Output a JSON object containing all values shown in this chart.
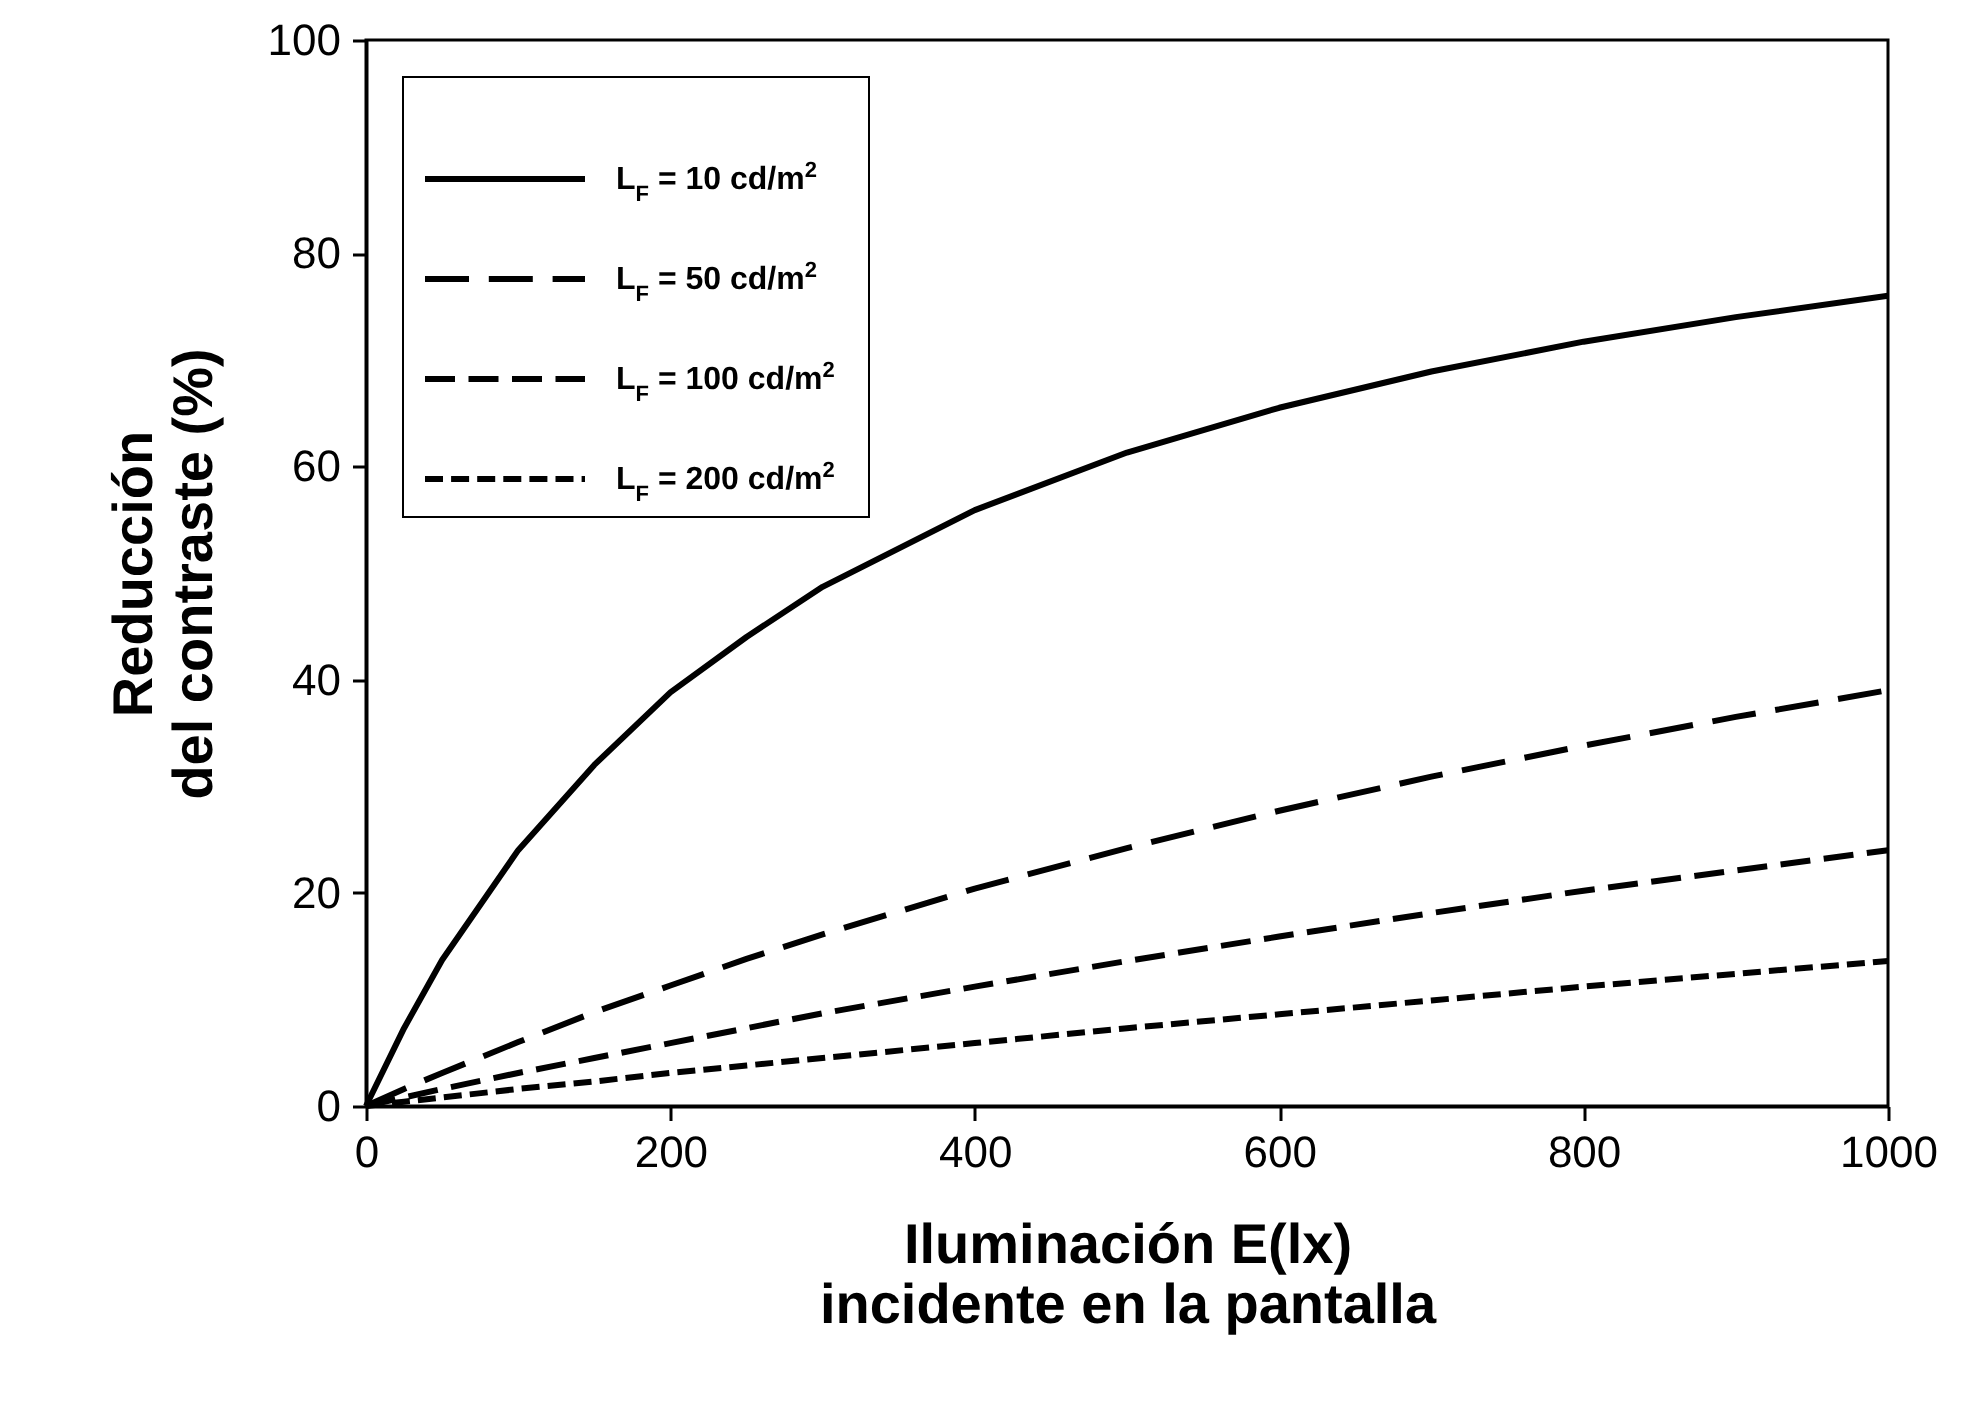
{
  "chart_data": {
    "type": "line",
    "xlabel": "Iluminación E(lx)\nincidente en la pantalla",
    "ylabel": "Reducción\ndel contraste (%)",
    "x": [
      0,
      25,
      50,
      100,
      150,
      200,
      250,
      300,
      400,
      500,
      600,
      700,
      800,
      900,
      1000
    ],
    "series": [
      {
        "name": "L$_{F}$ = 10 cd/m$^{2}$",
        "color": "#000000",
        "line_style": "solid",
        "values": [
          0,
          7.3,
          13.7,
          24,
          32,
          38.8,
          44,
          48.7,
          55.9,
          61.3,
          65.5,
          68.9,
          71.7,
          74,
          76
        ]
      },
      {
        "name": "L$_{F}$ = 50 cd/m$^{2}$",
        "color": "#000000",
        "line_style": "dashed",
        "values": [
          0,
          1.6,
          3.1,
          6,
          8.8,
          11.3,
          13.8,
          16.1,
          20.4,
          24.2,
          27.7,
          30.9,
          33.8,
          36.5,
          39
        ]
      },
      {
        "name": "L$_{F}$ = 100 cd/m$^{2}$",
        "color": "#000000",
        "line_style": "dashed",
        "values": [
          0,
          0.8,
          1.6,
          3.1,
          4.5,
          5.9,
          7.3,
          8.7,
          11.2,
          13.6,
          15.9,
          18.1,
          20.2,
          22.1,
          24
        ]
      },
      {
        "name": "L$_{F}$ = 200 cd/m$^{2}$",
        "color": "#000000",
        "line_style": "dashed",
        "values": [
          0,
          0.4,
          0.8,
          1.6,
          2.3,
          3.1,
          3.8,
          4.5,
          5.9,
          7.3,
          8.6,
          9.9,
          11.2,
          12.4,
          13.6
        ]
      }
    ],
    "xlim": [
      0,
      1000
    ],
    "xticks": [
      0,
      200,
      400,
      600,
      800,
      1000
    ],
    "ylim": [
      0,
      100
    ],
    "yticks": [
      0,
      20,
      40,
      60,
      80,
      100
    ],
    "grid": false,
    "legend": "top left"
  }
}
